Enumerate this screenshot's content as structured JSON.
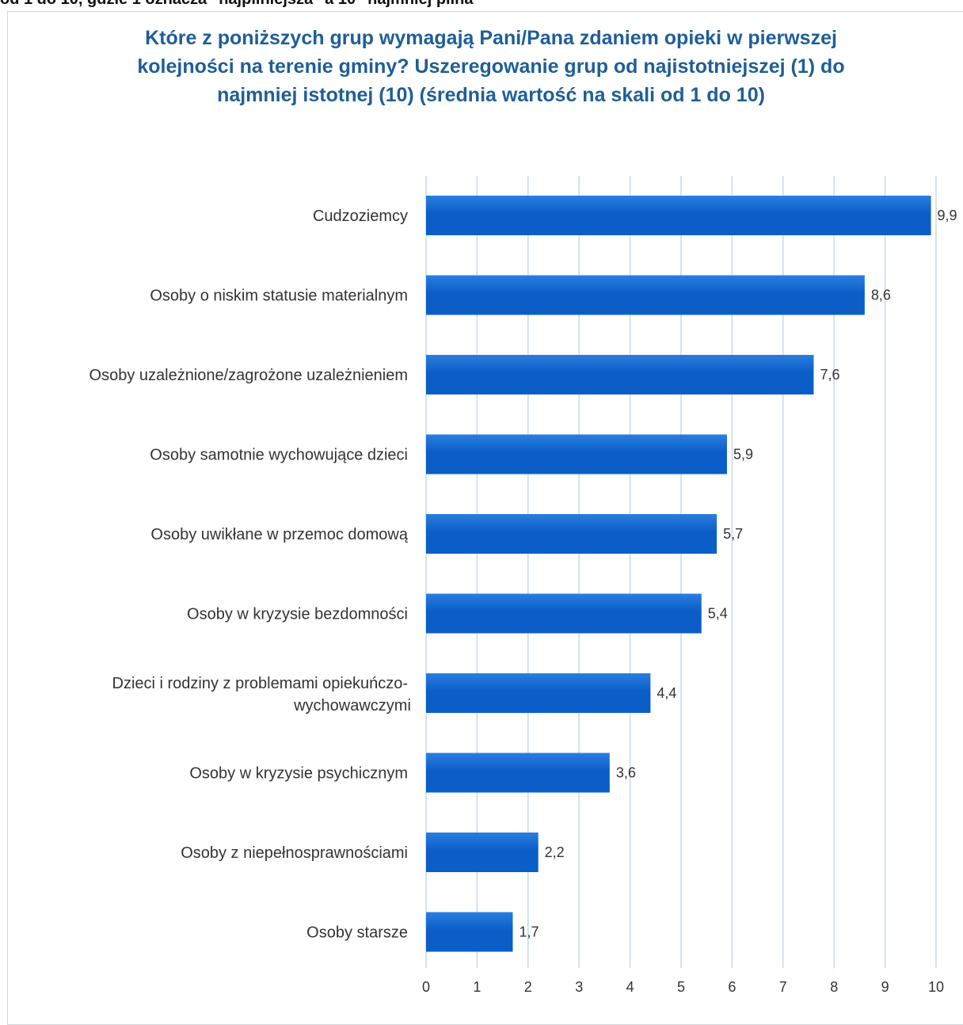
{
  "caption": "od 1 do 10, gdzie 1 oznacza \"najpilniejsza\" a 10 \"najmniej pilna\"",
  "chart_data": {
    "type": "bar",
    "orientation": "horizontal",
    "title": "Które z poniższych grup wymagają Pani/Pana zdaniem opieki w pierwszej kolejności na terenie gminy? Uszeregowanie grup od najistotniejszej (1) do najmniej istotnej (10) (średnia wartość na skali od 1 do 10)",
    "categories": [
      "Cudzoziemcy",
      "Osoby o niskim statusie materialnym",
      "Osoby uzależnione/zagrożone uzależnieniem",
      "Osoby samotnie wychowujące dzieci",
      "Osoby uwikłane w przemoc domową",
      "Osoby w kryzysie bezdomności",
      "Dzieci i rodziny z problemami opiekuńczo-wychowawczymi",
      "Osoby w kryzysie psychicznym",
      "Osoby z niepełnosprawnościami",
      "Osoby starsze"
    ],
    "values": [
      9.9,
      8.6,
      7.6,
      5.9,
      5.7,
      5.4,
      4.4,
      3.6,
      2.2,
      1.7
    ],
    "value_labels": [
      "9,9",
      "8,6",
      "7,6",
      "5,9",
      "5,7",
      "5,4",
      "4,4",
      "3,6",
      "2,2",
      "1,7"
    ],
    "xlim": [
      0,
      10
    ],
    "x_ticks": [
      "0",
      "1",
      "2",
      "3",
      "4",
      "5",
      "6",
      "7",
      "8",
      "9",
      "10"
    ],
    "grid": true,
    "legend": "none",
    "bar_color": "#0b5ec8",
    "bar_color_light": "#2a7ee0",
    "title_color": "#1f5e96",
    "grid_color": "#c9d9ea"
  }
}
